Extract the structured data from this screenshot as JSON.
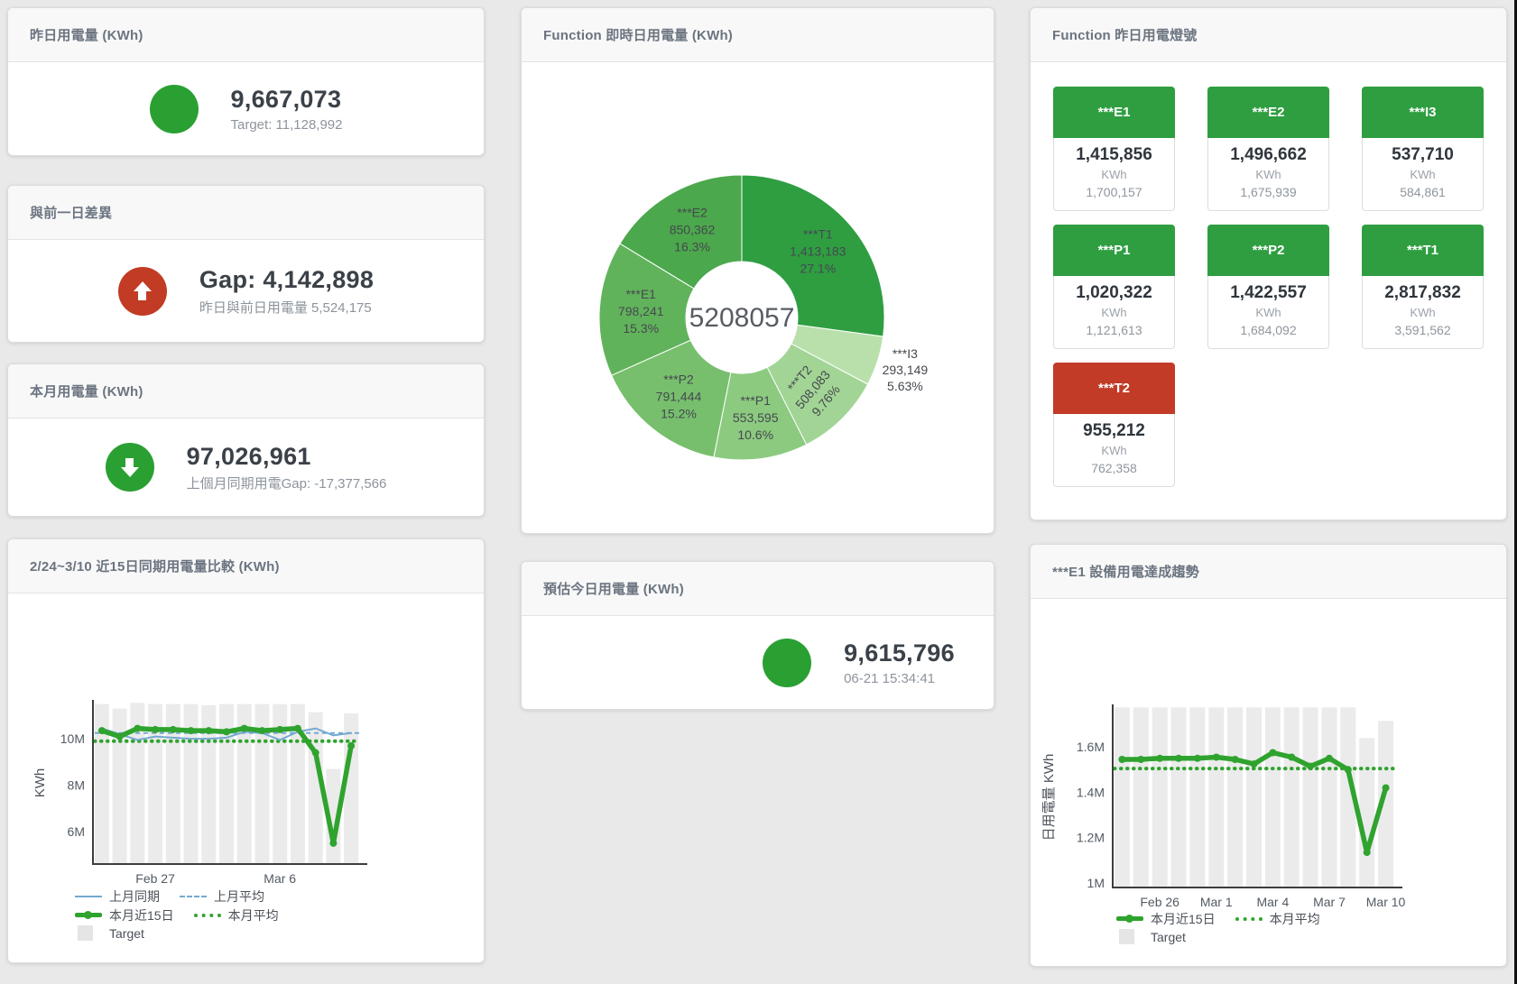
{
  "colors": {
    "green": "#2f9e41",
    "red": "#c13b27",
    "chart_green": "#2fa32e",
    "chart_blue": "#74a9d1",
    "bar_gray": "#ebebeb",
    "axis": "#3d3d3d"
  },
  "stat_cards": [
    {
      "title": "昨日用電量 (KWh)",
      "icon": "status-circle",
      "icon_color": "green",
      "value": "9,667,073",
      "subtitle": "Target: 11,128,992"
    },
    {
      "title": "與前一日差異",
      "icon": "arrow-up-circle",
      "icon_color": "red",
      "value": "Gap: 4,142,898",
      "subtitle": "昨日與前日用電量 5,524,175"
    },
    {
      "title": "本月用電量 (KWh)",
      "icon": "arrow-down-circle",
      "icon_color": "green",
      "value": "97,026,961",
      "subtitle": "上個月同期用電Gap: -17,377,566"
    },
    {
      "title": "預估今日用電量 (KWh)",
      "icon": "status-circle",
      "icon_color": "green",
      "value": "9,615,796",
      "subtitle": "06-21 15:34:41"
    }
  ],
  "lights": {
    "title": "Function 昨日用電燈號",
    "tiles": [
      {
        "label": "***E1",
        "status": "green",
        "value": "1,415,856",
        "unit": "KWh",
        "target": "1,700,157"
      },
      {
        "label": "***E2",
        "status": "green",
        "value": "1,496,662",
        "unit": "KWh",
        "target": "1,675,939"
      },
      {
        "label": "***I3",
        "status": "green",
        "value": "537,710",
        "unit": "KWh",
        "target": "584,861"
      },
      {
        "label": "***P1",
        "status": "green",
        "value": "1,020,322",
        "unit": "KWh",
        "target": "1,121,613"
      },
      {
        "label": "***P2",
        "status": "green",
        "value": "1,422,557",
        "unit": "KWh",
        "target": "1,684,092"
      },
      {
        "label": "***T1",
        "status": "green",
        "value": "2,817,832",
        "unit": "KWh",
        "target": "3,591,562"
      },
      {
        "label": "***T2",
        "status": "red",
        "value": "955,212",
        "unit": "KWh",
        "target": "762,358"
      }
    ]
  },
  "chart_data": [
    {
      "id": "realtime-donut",
      "type": "pie",
      "title": "Function 即時日用電量 (KWh)",
      "center_total": "5208057",
      "legend_position": "none",
      "slices": [
        {
          "name": "***T1",
          "value": 1413183,
          "value_label": "1,413,183",
          "pct_label": "27.1%",
          "color": "#2f9e41"
        },
        {
          "name": "***I3",
          "value": 293149,
          "value_label": "293,149",
          "pct_label": "5.63%",
          "color": "#b9e0ab",
          "label_outside": true
        },
        {
          "name": "***T2",
          "value": 508083,
          "value_label": "508,083",
          "pct_label": "9.76%",
          "color": "#a2d595",
          "label_rotate": -50
        },
        {
          "name": "***P1",
          "value": 553595,
          "value_label": "553,595",
          "pct_label": "10.6%",
          "color": "#8cca80"
        },
        {
          "name": "***P2",
          "value": 791444,
          "value_label": "791,444",
          "pct_label": "15.2%",
          "color": "#77bf6d"
        },
        {
          "name": "***E1",
          "value": 798241,
          "value_label": "798,241",
          "pct_label": "15.3%",
          "color": "#61b35b"
        },
        {
          "name": "***E2",
          "value": 850362,
          "value_label": "850,362",
          "pct_label": "16.3%",
          "color": "#4ba84c"
        }
      ]
    },
    {
      "id": "compare15",
      "type": "line+bar",
      "title": "2/24~3/10 近15日同期用電量比較 (KWh)",
      "ylabel": "KWh",
      "ylim": [
        4.6,
        11.6
      ],
      "grid": false,
      "yticks": [
        {
          "v": 6,
          "label": "6M"
        },
        {
          "v": 8,
          "label": "8M"
        },
        {
          "v": 10,
          "label": "10M"
        }
      ],
      "xticks": [
        {
          "index": 3,
          "label": "Feb 27"
        },
        {
          "index": 10,
          "label": "Mar 6"
        }
      ],
      "target_bars": {
        "name": "Target",
        "values": [
          11.5,
          11.3,
          11.55,
          11.5,
          11.5,
          11.5,
          11.45,
          11.5,
          11.5,
          11.5,
          11.5,
          11.5,
          11.15,
          8.7,
          11.1
        ]
      },
      "series": [
        {
          "name": "上月同期",
          "style": "blue-line",
          "values": [
            10.45,
            10.2,
            9.95,
            10.1,
            10.05,
            10.0,
            10.0,
            10.05,
            10.3,
            10.25,
            9.95,
            10.3,
            10.45,
            10.15,
            10.25
          ]
        },
        {
          "name": "上月平均",
          "style": "blue-dash",
          "avg": 10.25
        },
        {
          "name": "本月近15日",
          "style": "green-thick",
          "values": [
            10.35,
            10.1,
            10.45,
            10.4,
            10.4,
            10.35,
            10.35,
            10.3,
            10.45,
            10.35,
            10.4,
            10.45,
            9.4,
            5.5,
            9.7
          ]
        },
        {
          "name": "本月平均",
          "style": "green-dot",
          "avg": 9.9
        }
      ]
    },
    {
      "id": "e1-trend",
      "type": "line+bar",
      "title": "***E1 設備用電達成趨勢",
      "ylabel": "日用電量 KWh",
      "ylim": [
        0.98,
        1.78
      ],
      "grid": false,
      "yticks": [
        {
          "v": 1,
          "label": "1M"
        },
        {
          "v": 1.2,
          "label": "1.2M"
        },
        {
          "v": 1.4,
          "label": "1.4M"
        },
        {
          "v": 1.6,
          "label": "1.6M"
        }
      ],
      "xticks": [
        {
          "index": 2,
          "label": "Feb 26"
        },
        {
          "index": 5,
          "label": "Mar 1"
        },
        {
          "index": 8,
          "label": "Mar 4"
        },
        {
          "index": 11,
          "label": "Mar 7"
        },
        {
          "index": 14,
          "label": "Mar 10"
        }
      ],
      "target_bars": {
        "name": "Target",
        "values": [
          1.775,
          1.775,
          1.775,
          1.775,
          1.775,
          1.775,
          1.775,
          1.775,
          1.775,
          1.775,
          1.775,
          1.775,
          1.775,
          1.64,
          1.715
        ]
      },
      "series": [
        {
          "name": "本月近15日",
          "style": "green-thick",
          "values": [
            1.545,
            1.545,
            1.55,
            1.55,
            1.55,
            1.555,
            1.545,
            1.525,
            1.575,
            1.555,
            1.515,
            1.55,
            1.5,
            1.135,
            1.42
          ]
        },
        {
          "name": "本月平均",
          "style": "green-dot",
          "avg": 1.505
        }
      ]
    }
  ]
}
